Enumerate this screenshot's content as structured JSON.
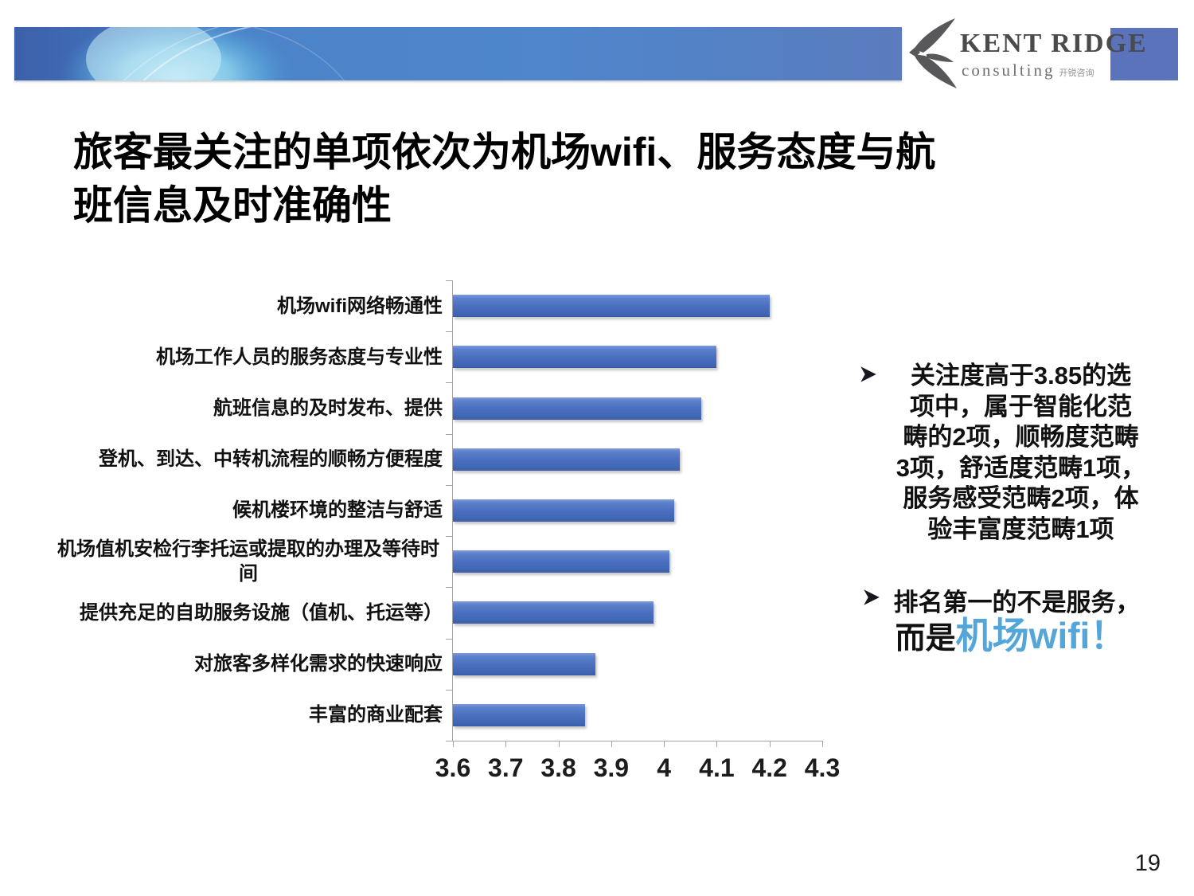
{
  "logo": {
    "name": "KENT RIDGE",
    "subtitle": "consulting",
    "subtitle_cn": "开锐咨询"
  },
  "title": {
    "text": "旅客最关注的单项依次为机场wifi、服务态度与航班信息及时准确性",
    "lines": [
      "旅客最关注的单项依次为机场wifi、服务态度与航",
      "班信息及时准确性"
    ]
  },
  "bullets": [
    {
      "text": "关注度高于3.85的选项中，属于智能化范畴的2项，顺畅度范畴3项，舒适度范畴1项，服务感受范畴2项，体验丰富度范畴1项",
      "lines": [
        "关注度高于3.85的选",
        "项中，属于智能化范",
        "畴的2项，顺畅度范畴",
        "3项，舒适度范畴1项，",
        "服务感受范畴2项，体",
        "验丰富度范畴1项"
      ]
    },
    {
      "line1": "排名第一的不是服务，",
      "line2_prefix": "而是",
      "line2_highlight": "机场wifi！"
    }
  ],
  "chart_data": {
    "type": "bar",
    "orientation": "horizontal",
    "title": "",
    "xlabel": "",
    "ylabel": "",
    "categories": [
      "机场wifi网络畅通性",
      "机场工作人员的服务态度与专业性",
      "航班信息的及时发布、提供",
      "登机、到达、中转机流程的顺畅方便程度",
      "候机楼环境的整洁与舒适",
      "机场值机安检行李托运或提取的办理及等待时间",
      "提供充足的自助服务设施（值机、托运等）",
      "对旅客多样化需求的快速响应",
      "丰富的商业配套"
    ],
    "values": [
      4.2,
      4.1,
      4.07,
      4.03,
      4.02,
      4.01,
      3.98,
      3.87,
      3.85
    ],
    "xlim": [
      3.6,
      4.3
    ],
    "xticks": [
      3.6,
      3.7,
      3.8,
      3.9,
      4.0,
      4.1,
      4.2,
      4.3
    ],
    "xtick_labels": [
      "3.6",
      "3.7",
      "3.8",
      "3.9",
      "4",
      "4.1",
      "4.2",
      "4.3"
    ],
    "grid": false,
    "legend": false,
    "bar_color": "#4a70bf"
  },
  "colors": {
    "highlight_blue": "#55a6d8",
    "banner_blue": "#4f86cc",
    "corner_square": "#5a73ba"
  },
  "page_number": "19"
}
